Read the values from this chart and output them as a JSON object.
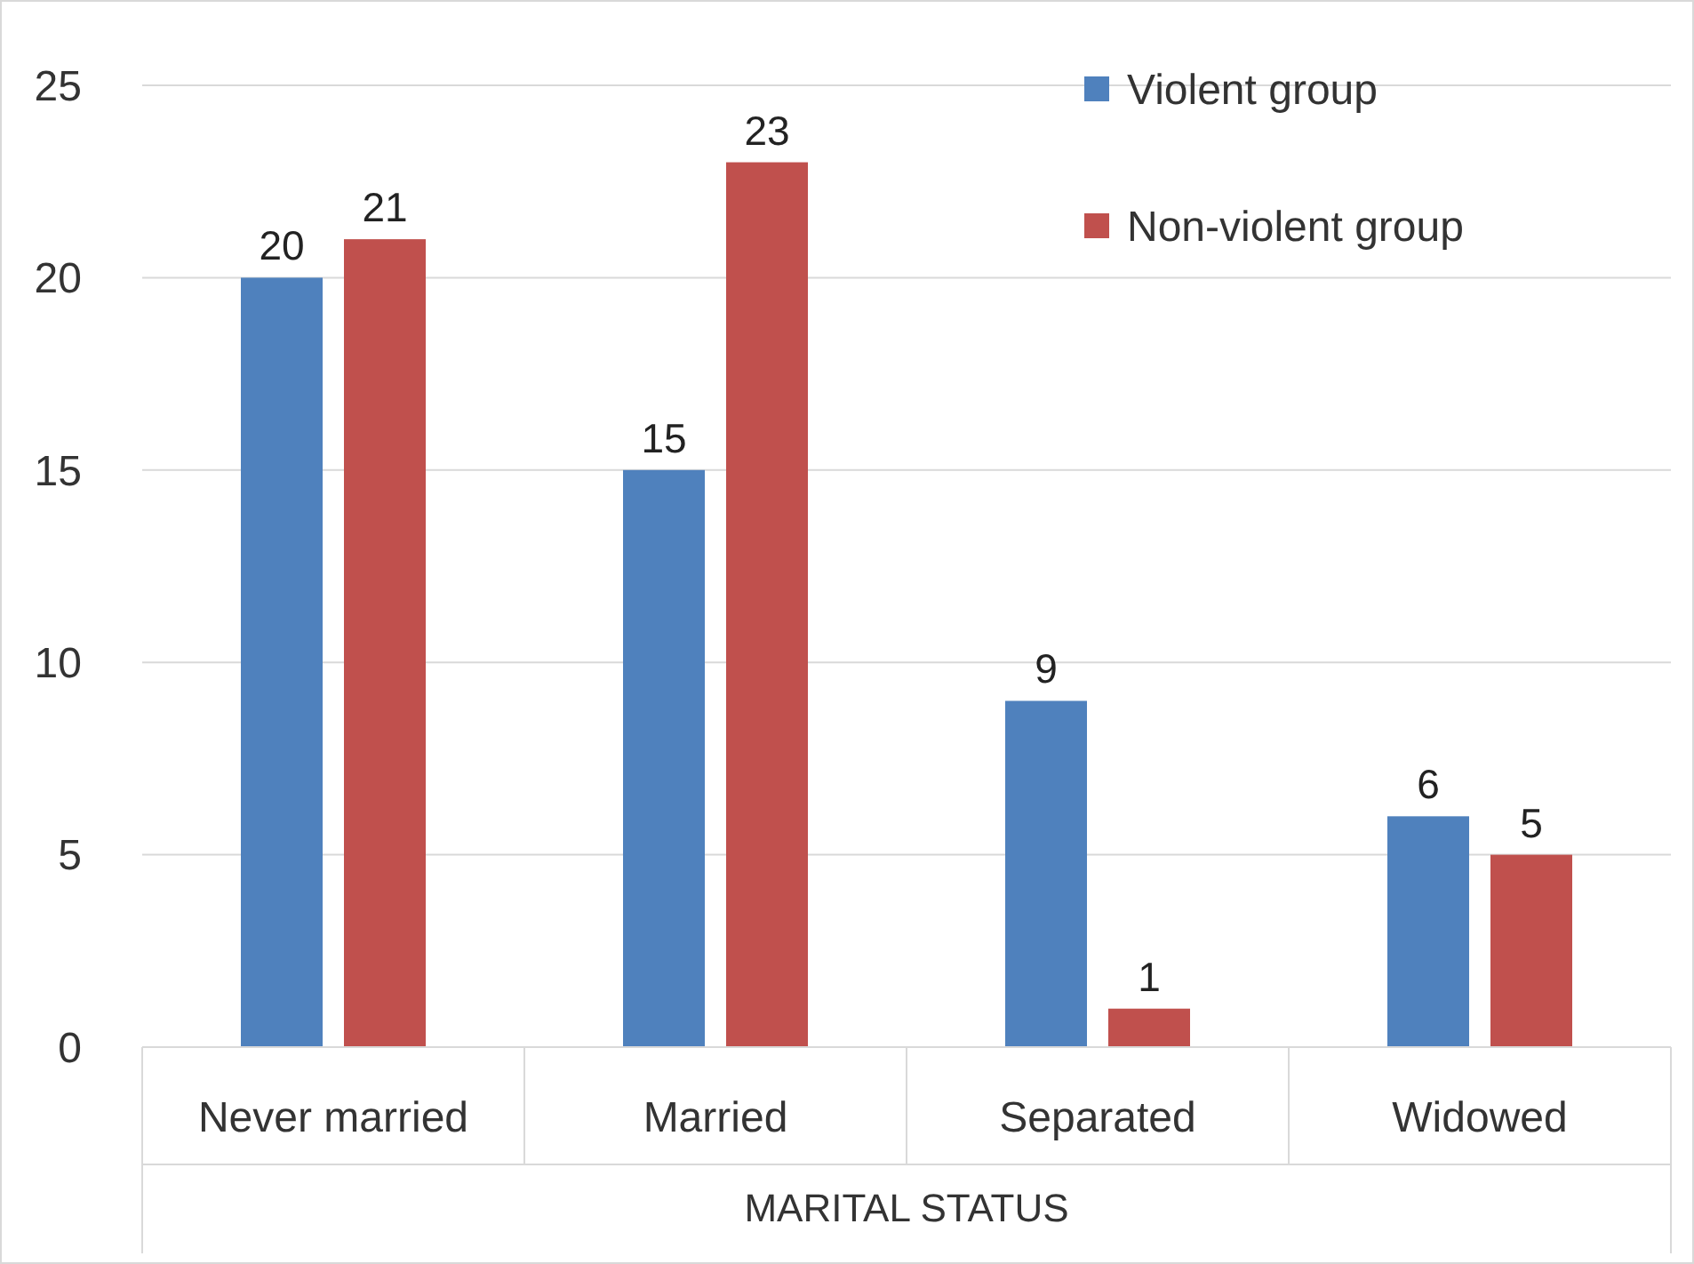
{
  "chart_data": {
    "type": "bar",
    "xlabel": "MARITAL STATUS",
    "categories": [
      "Never married",
      "Married",
      "Separated",
      "Widowed"
    ],
    "series": [
      {
        "name": "Violent group",
        "color": "#4f81bd",
        "values": [
          20,
          15,
          9,
          6
        ]
      },
      {
        "name": "Non-violent group",
        "color": "#c0504d",
        "values": [
          21,
          23,
          1,
          5
        ]
      }
    ],
    "ylim": [
      0,
      25
    ],
    "yticks": [
      0,
      5,
      10,
      15,
      20,
      25
    ],
    "grid": "y",
    "legend": "top right",
    "data_labels": true
  }
}
